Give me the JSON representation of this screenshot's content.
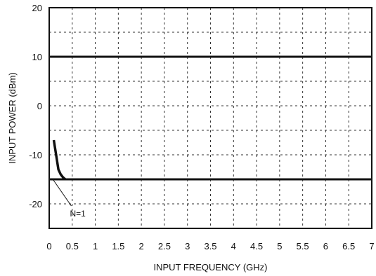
{
  "chart_data": {
    "type": "line",
    "xlabel": "INPUT FREQUENCY (GHz)",
    "ylabel": "INPUT POWER (dBm)",
    "xlim": [
      0,
      7
    ],
    "ylim": [
      -25,
      20
    ],
    "xticks": [
      "0",
      "0.5",
      "1",
      "1.5",
      "2",
      "2.5",
      "3",
      "3.5",
      "4",
      "4.5",
      "5",
      "5.5",
      "6",
      "6.5",
      "7"
    ],
    "yticks": [
      "20",
      "10",
      "0",
      "-10",
      "-20"
    ],
    "grid": true,
    "grid_style": "dotted",
    "series": [
      {
        "name": "N=1",
        "x": [
          0.1,
          0.15,
          0.2,
          0.25,
          0.3,
          0.35
        ],
        "y": [
          -7,
          -10,
          -13,
          -14,
          -14.6,
          -15
        ]
      }
    ],
    "reference_lines": [
      {
        "y": 10
      },
      {
        "y": -15
      }
    ],
    "annotations": [
      {
        "text": "N=1",
        "x": 0.45,
        "y": -22
      }
    ]
  }
}
